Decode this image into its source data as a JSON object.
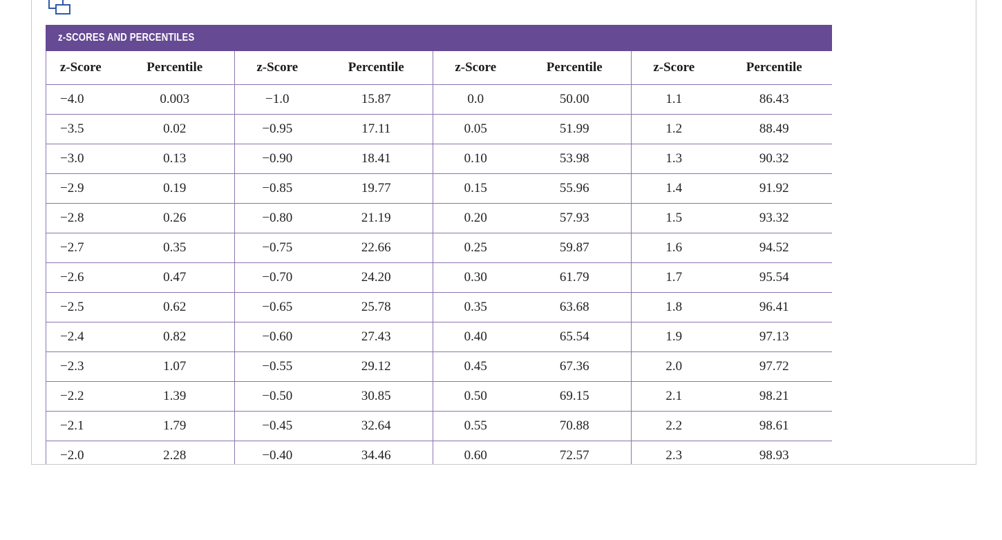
{
  "table": {
    "title": "z-SCORES AND PERCENTILES",
    "headers": [
      "z-Score",
      "Percentile",
      "z-Score",
      "Percentile",
      "z-Score",
      "Percentile",
      "z-Score",
      "Percentile"
    ],
    "rows": [
      [
        "−4.0",
        "0.003",
        "−1.0",
        "15.87",
        "0.0",
        "50.00",
        "1.1",
        "86.43"
      ],
      [
        "−3.5",
        "0.02",
        "−0.95",
        "17.11",
        "0.05",
        "51.99",
        "1.2",
        "88.49"
      ],
      [
        "−3.0",
        "0.13",
        "−0.90",
        "18.41",
        "0.10",
        "53.98",
        "1.3",
        "90.32"
      ],
      [
        "−2.9",
        "0.19",
        "−0.85",
        "19.77",
        "0.15",
        "55.96",
        "1.4",
        "91.92"
      ],
      [
        "−2.8",
        "0.26",
        "−0.80",
        "21.19",
        "0.20",
        "57.93",
        "1.5",
        "93.32"
      ],
      [
        "−2.7",
        "0.35",
        "−0.75",
        "22.66",
        "0.25",
        "59.87",
        "1.6",
        "94.52"
      ],
      [
        "−2.6",
        "0.47",
        "−0.70",
        "24.20",
        "0.30",
        "61.79",
        "1.7",
        "95.54"
      ],
      [
        "−2.5",
        "0.62",
        "−0.65",
        "25.78",
        "0.35",
        "63.68",
        "1.8",
        "96.41"
      ],
      [
        "−2.4",
        "0.82",
        "−0.60",
        "27.43",
        "0.40",
        "65.54",
        "1.9",
        "97.13"
      ],
      [
        "−2.3",
        "1.07",
        "−0.55",
        "29.12",
        "0.45",
        "67.36",
        "2.0",
        "97.72"
      ],
      [
        "−2.2",
        "1.39",
        "−0.50",
        "30.85",
        "0.50",
        "69.15",
        "2.1",
        "98.21"
      ],
      [
        "−2.1",
        "1.79",
        "−0.45",
        "32.64",
        "0.55",
        "70.88",
        "2.2",
        "98.61"
      ],
      [
        "−2.0",
        "2.28",
        "−0.40",
        "34.46",
        "0.60",
        "72.57",
        "2.3",
        "98.93"
      ]
    ]
  },
  "icons": {
    "expand": "expand-window-icon"
  },
  "colors": {
    "header_bg": "#664a93",
    "rule": "#8c74b0"
  }
}
